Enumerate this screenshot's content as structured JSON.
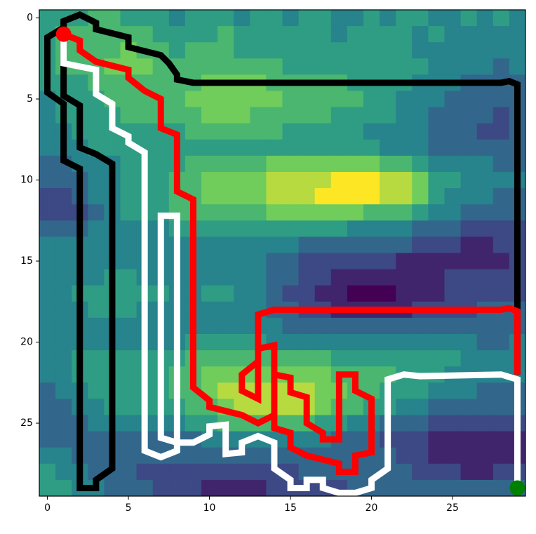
{
  "chart_data": {
    "type": "heatmap",
    "colormap": "viridis",
    "zlim": [
      0,
      9
    ],
    "xlim": [
      -0.5,
      29.5
    ],
    "ylim": [
      29.5,
      -0.5
    ],
    "xticks": [
      0,
      5,
      10,
      15,
      20,
      25
    ],
    "yticks": [
      0,
      5,
      10,
      15,
      20,
      25
    ],
    "z": [
      [
        5,
        5,
        5,
        6,
        6,
        5,
        5,
        5,
        4,
        5,
        5,
        5,
        4,
        5,
        5,
        4,
        5,
        5,
        4,
        4,
        5,
        4,
        5,
        5,
        4,
        4,
        5,
        4,
        5,
        4
      ],
      [
        5,
        6,
        6,
        6,
        6,
        6,
        6,
        5,
        5,
        5,
        5,
        6,
        5,
        5,
        5,
        5,
        5,
        5,
        4,
        5,
        5,
        5,
        5,
        4,
        5,
        4,
        4,
        4,
        4,
        4
      ],
      [
        5,
        6,
        6,
        6,
        6,
        7,
        6,
        6,
        5,
        6,
        6,
        6,
        5,
        5,
        5,
        5,
        5,
        5,
        5,
        5,
        5,
        5,
        5,
        4,
        4,
        4,
        4,
        4,
        4,
        4
      ],
      [
        5,
        6,
        6,
        6,
        7,
        7,
        7,
        6,
        6,
        6,
        6,
        6,
        6,
        6,
        6,
        5,
        5,
        5,
        5,
        5,
        5,
        5,
        5,
        5,
        4,
        4,
        4,
        4,
        3,
        4
      ],
      [
        5,
        5,
        5,
        6,
        6,
        6,
        6,
        6,
        6,
        6,
        7,
        7,
        7,
        7,
        6,
        6,
        6,
        6,
        6,
        5,
        5,
        5,
        5,
        4,
        4,
        4,
        3,
        3,
        3,
        3
      ],
      [
        4,
        5,
        5,
        5,
        6,
        6,
        6,
        6,
        6,
        7,
        7,
        7,
        7,
        7,
        7,
        6,
        6,
        6,
        6,
        6,
        5,
        5,
        4,
        4,
        4,
        3,
        3,
        3,
        3,
        3
      ],
      [
        4,
        5,
        5,
        5,
        5,
        6,
        6,
        6,
        6,
        6,
        7,
        7,
        7,
        6,
        6,
        6,
        6,
        6,
        5,
        5,
        5,
        5,
        4,
        4,
        3,
        3,
        3,
        3,
        2,
        3
      ],
      [
        4,
        4,
        5,
        5,
        5,
        5,
        5,
        5,
        5,
        6,
        6,
        6,
        6,
        6,
        6,
        5,
        5,
        5,
        5,
        5,
        4,
        4,
        4,
        4,
        3,
        3,
        3,
        2,
        2,
        3
      ],
      [
        4,
        4,
        4,
        5,
        5,
        5,
        5,
        5,
        5,
        5,
        5,
        5,
        5,
        5,
        5,
        5,
        5,
        5,
        5,
        5,
        5,
        4,
        4,
        4,
        3,
        3,
        3,
        3,
        3,
        3
      ],
      [
        3,
        3,
        4,
        4,
        4,
        5,
        5,
        5,
        5,
        6,
        6,
        6,
        6,
        6,
        7,
        7,
        7,
        7,
        7,
        7,
        7,
        6,
        6,
        5,
        4,
        4,
        4,
        4,
        3,
        3
      ],
      [
        3,
        3,
        3,
        4,
        4,
        5,
        5,
        5,
        6,
        6,
        7,
        7,
        7,
        7,
        8,
        8,
        8,
        8,
        9,
        9,
        9,
        8,
        8,
        7,
        5,
        5,
        4,
        4,
        4,
        4
      ],
      [
        2,
        2,
        3,
        4,
        4,
        5,
        5,
        5,
        6,
        6,
        7,
        7,
        7,
        7,
        8,
        8,
        8,
        9,
        9,
        9,
        9,
        8,
        8,
        7,
        5,
        4,
        4,
        4,
        3,
        3
      ],
      [
        2,
        2,
        2,
        3,
        4,
        5,
        5,
        5,
        6,
        6,
        6,
        6,
        6,
        6,
        7,
        7,
        7,
        7,
        7,
        7,
        6,
        6,
        6,
        5,
        4,
        4,
        3,
        3,
        3,
        3
      ],
      [
        3,
        3,
        3,
        4,
        4,
        4,
        4,
        4,
        5,
        5,
        5,
        5,
        5,
        5,
        5,
        5,
        5,
        5,
        5,
        4,
        4,
        4,
        4,
        3,
        3,
        3,
        2,
        2,
        2,
        2
      ],
      [
        4,
        4,
        4,
        4,
        4,
        4,
        4,
        4,
        4,
        4,
        4,
        4,
        4,
        4,
        4,
        4,
        3,
        3,
        3,
        3,
        3,
        3,
        3,
        2,
        2,
        2,
        1,
        1,
        2,
        2
      ],
      [
        4,
        4,
        4,
        4,
        4,
        4,
        4,
        4,
        4,
        4,
        4,
        4,
        4,
        4,
        3,
        3,
        2,
        2,
        2,
        2,
        2,
        2,
        1,
        1,
        1,
        1,
        1,
        1,
        1,
        2
      ],
      [
        4,
        4,
        4,
        4,
        5,
        5,
        4,
        4,
        4,
        4,
        4,
        4,
        4,
        4,
        3,
        3,
        2,
        2,
        1,
        1,
        1,
        1,
        1,
        1,
        1,
        2,
        2,
        2,
        2,
        2
      ],
      [
        4,
        4,
        5,
        5,
        5,
        5,
        5,
        5,
        4,
        4,
        5,
        5,
        4,
        4,
        3,
        2,
        2,
        1,
        1,
        0,
        0,
        0,
        1,
        1,
        1,
        2,
        2,
        2,
        2,
        2
      ],
      [
        4,
        4,
        4,
        5,
        5,
        5,
        4,
        4,
        4,
        4,
        4,
        4,
        4,
        4,
        3,
        3,
        2,
        2,
        1,
        1,
        1,
        1,
        1,
        2,
        2,
        2,
        2,
        3,
        3,
        3
      ],
      [
        4,
        4,
        4,
        4,
        4,
        4,
        4,
        4,
        4,
        4,
        4,
        4,
        4,
        4,
        4,
        3,
        3,
        3,
        3,
        3,
        3,
        3,
        3,
        3,
        3,
        3,
        3,
        3,
        3,
        3
      ],
      [
        4,
        4,
        4,
        4,
        4,
        4,
        4,
        4,
        4,
        5,
        5,
        5,
        5,
        5,
        4,
        4,
        4,
        4,
        4,
        4,
        4,
        4,
        4,
        4,
        4,
        4,
        4,
        3,
        3,
        4
      ],
      [
        4,
        4,
        5,
        5,
        5,
        5,
        5,
        5,
        5,
        6,
        6,
        6,
        6,
        6,
        6,
        6,
        6,
        6,
        5,
        5,
        5,
        5,
        5,
        5,
        5,
        5,
        4,
        4,
        4,
        4
      ],
      [
        4,
        4,
        5,
        5,
        5,
        5,
        5,
        5,
        6,
        6,
        7,
        7,
        7,
        7,
        7,
        7,
        7,
        7,
        6,
        6,
        6,
        6,
        5,
        5,
        5,
        4,
        4,
        4,
        4,
        4
      ],
      [
        3,
        4,
        4,
        5,
        5,
        5,
        5,
        5,
        6,
        6,
        7,
        8,
        8,
        8,
        8,
        8,
        8,
        7,
        7,
        6,
        6,
        5,
        5,
        5,
        4,
        4,
        4,
        3,
        3,
        3
      ],
      [
        3,
        3,
        4,
        4,
        5,
        5,
        5,
        5,
        5,
        6,
        6,
        7,
        8,
        8,
        8,
        8,
        8,
        7,
        6,
        6,
        5,
        5,
        4,
        4,
        3,
        3,
        3,
        3,
        3,
        3
      ],
      [
        3,
        3,
        3,
        4,
        4,
        4,
        4,
        4,
        4,
        5,
        5,
        6,
        6,
        6,
        6,
        6,
        6,
        5,
        5,
        4,
        4,
        3,
        3,
        3,
        2,
        2,
        2,
        2,
        2,
        2
      ],
      [
        3,
        3,
        3,
        3,
        3,
        3,
        3,
        3,
        3,
        3,
        4,
        4,
        4,
        4,
        4,
        4,
        4,
        4,
        3,
        3,
        3,
        2,
        2,
        2,
        1,
        1,
        1,
        1,
        1,
        1
      ],
      [
        4,
        4,
        3,
        3,
        3,
        3,
        3,
        3,
        3,
        3,
        3,
        3,
        3,
        3,
        3,
        3,
        3,
        3,
        3,
        3,
        3,
        3,
        2,
        2,
        1,
        1,
        1,
        1,
        1,
        1
      ],
      [
        5,
        4,
        4,
        3,
        3,
        3,
        2,
        2,
        2,
        2,
        2,
        2,
        2,
        2,
        2,
        2,
        3,
        3,
        3,
        3,
        3,
        3,
        3,
        2,
        2,
        2,
        1,
        1,
        2,
        2
      ],
      [
        5,
        5,
        4,
        4,
        3,
        3,
        3,
        2,
        2,
        2,
        1,
        1,
        1,
        1,
        2,
        2,
        2,
        2,
        2,
        3,
        3,
        3,
        3,
        3,
        3,
        3,
        3,
        3,
        3,
        3
      ]
    ],
    "paths": [
      {
        "color": "#000000",
        "x": [
          29,
          29,
          28.5,
          28,
          10,
          9,
          8,
          8,
          7.5,
          7,
          5,
          5,
          3,
          3,
          2,
          1,
          1,
          0,
          0,
          1,
          1,
          2,
          2,
          3,
          3,
          4,
          4,
          3,
          2,
          2,
          1,
          1,
          1
        ],
        "y": [
          22,
          4.1,
          3.9,
          4,
          4,
          4,
          3.8,
          3.5,
          2.8,
          2.3,
          1.8,
          1.2,
          0.7,
          0.3,
          -0.2,
          0.2,
          0.6,
          1.2,
          4.6,
          5.3,
          8.8,
          9.3,
          29,
          29,
          28.5,
          27.8,
          9,
          8.4,
          8,
          5.4,
          4.8,
          3.7,
          1
        ]
      },
      {
        "color": "#ffffff",
        "x": [
          1,
          1,
          3,
          3,
          4,
          4,
          5,
          5,
          6,
          6,
          7,
          8,
          8,
          7,
          7,
          8,
          9,
          10,
          10,
          11,
          11,
          12,
          12,
          13,
          14,
          14,
          15,
          15,
          16,
          16,
          17,
          17,
          18,
          19,
          20,
          20,
          21,
          21,
          22,
          23,
          28,
          29,
          29
        ],
        "y": [
          1,
          2.8,
          3.2,
          4.7,
          5.3,
          6.8,
          7.3,
          7.7,
          8.3,
          26.7,
          27.1,
          26.7,
          12.2,
          12.2,
          25.9,
          26.2,
          26.2,
          25.7,
          25.2,
          25.1,
          26.9,
          26.8,
          26.2,
          25.8,
          26.2,
          27.8,
          28.5,
          29,
          29,
          28.5,
          28.5,
          29,
          29.3,
          29.3,
          29,
          28.5,
          27.8,
          22.3,
          22,
          22.1,
          22,
          22.3,
          29
        ]
      },
      {
        "color": "#ff0000",
        "x": [
          1,
          2,
          2,
          3,
          5,
          5,
          6,
          7,
          7,
          8,
          8,
          9,
          9,
          10,
          10,
          12,
          13,
          14,
          14,
          15,
          15,
          16,
          16,
          17,
          17,
          18,
          18,
          19,
          19,
          20,
          20,
          19,
          19,
          18,
          18,
          16,
          15,
          15,
          14,
          14,
          13,
          13,
          12,
          12,
          13,
          13,
          14,
          28,
          28.5,
          29,
          29
        ],
        "y": [
          1,
          1.4,
          2,
          2.7,
          3.2,
          3.7,
          4.5,
          5,
          6.8,
          7.2,
          10.7,
          11.2,
          22.8,
          23.6,
          24,
          24.5,
          25,
          24.5,
          22,
          22.2,
          23.1,
          23.4,
          25,
          25.6,
          26,
          26,
          22,
          22,
          23,
          23.5,
          26.8,
          27,
          28,
          28,
          27.5,
          27,
          26.5,
          25.6,
          25.3,
          20.2,
          20.4,
          21.2,
          22,
          23,
          23.5,
          18.3,
          18,
          18,
          17.9,
          18.1,
          22
        ]
      }
    ],
    "markers": [
      {
        "x": 1,
        "y": 1,
        "color": "#ff0000"
      },
      {
        "x": 29,
        "y": 29,
        "color": "#008000"
      }
    ]
  }
}
